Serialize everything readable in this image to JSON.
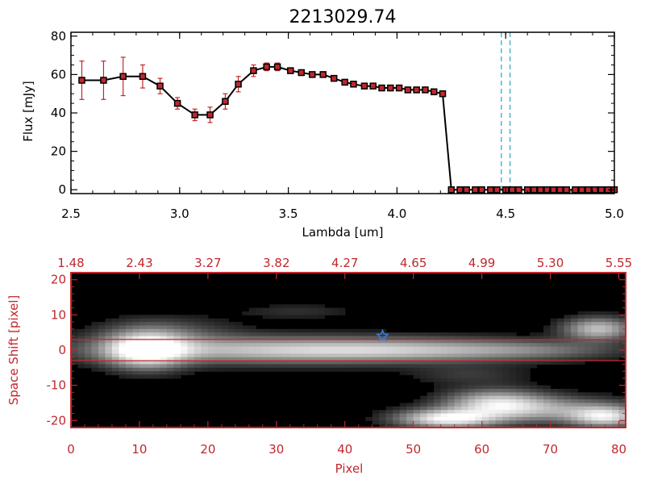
{
  "colors": {
    "axis": "#000000",
    "accent": "#c1272d",
    "line": "#000000",
    "marker": "#c1272d",
    "vline": "#2aa6c8",
    "star": "#3a7bd5"
  },
  "chart_data": [
    {
      "type": "line",
      "title": "2213029.74",
      "xlabel": "Lambda [um]",
      "ylabel": "Flux [mJy]",
      "xlim": [
        2.5,
        5.0
      ],
      "ylim": [
        -2,
        82
      ],
      "xticks": [
        "2.5",
        "3.0",
        "3.5",
        "4.0",
        "4.5",
        "5.0"
      ],
      "xtick_values": [
        2.5,
        3.0,
        3.5,
        4.0,
        4.5,
        5.0
      ],
      "yticks": [
        "0",
        "20",
        "40",
        "60",
        "80"
      ],
      "ytick_values": [
        0,
        20,
        40,
        60,
        80
      ],
      "series": [
        {
          "x": [
            2.55,
            2.65,
            2.74,
            2.83,
            2.91,
            2.99,
            3.07,
            3.14,
            3.21,
            3.27,
            3.34,
            3.4,
            3.45,
            3.51,
            3.56,
            3.61,
            3.66,
            3.71,
            3.76,
            3.8,
            3.85,
            3.89,
            3.93,
            3.97,
            4.01,
            4.05,
            4.09,
            4.13,
            4.17,
            4.21,
            4.25,
            4.29,
            4.32,
            4.36,
            4.39,
            4.43,
            4.46,
            4.5,
            4.53,
            4.56,
            4.6,
            4.63,
            4.66,
            4.69,
            4.72,
            4.75,
            4.78,
            4.82,
            4.85,
            4.88,
            4.91,
            4.94,
            4.97,
            5.0
          ],
          "y": [
            57,
            57,
            59,
            59,
            54,
            45,
            39,
            39,
            46,
            55,
            62,
            64,
            64,
            62,
            61,
            60,
            60,
            58,
            56,
            55,
            54,
            54,
            53,
            53,
            53,
            52,
            52,
            52,
            51,
            50,
            0,
            0,
            0,
            0,
            0,
            0,
            0,
            0,
            0,
            0,
            0,
            0,
            0,
            0,
            0,
            0,
            0,
            0,
            0,
            0,
            0,
            0,
            0,
            0
          ],
          "yerr": [
            10,
            10,
            10,
            6,
            4,
            3,
            3,
            4,
            4,
            4,
            3,
            2,
            2,
            0,
            0,
            0,
            0,
            0,
            0,
            0,
            0,
            0,
            0,
            0,
            0,
            0,
            0,
            0,
            0,
            0,
            0,
            0,
            0,
            0,
            0,
            0,
            0,
            0,
            0,
            0,
            0,
            0,
            0,
            0,
            0,
            0,
            0,
            0,
            0,
            0,
            0,
            0,
            0,
            0
          ]
        }
      ],
      "vlines": [
        4.48,
        4.52
      ]
    },
    {
      "type": "heatmap",
      "xlabel": "Pixel",
      "ylabel": "Space Shift [pixel]",
      "xlim": [
        0,
        81
      ],
      "ylim": [
        -22,
        22
      ],
      "xticks": [
        "0",
        "10",
        "20",
        "30",
        "40",
        "50",
        "60",
        "70",
        "80"
      ],
      "xtick_values": [
        0,
        10,
        20,
        30,
        40,
        50,
        60,
        70,
        80
      ],
      "yticks": [
        "20",
        "10",
        "0",
        "-10",
        "-20"
      ],
      "ytick_values": [
        20,
        10,
        0,
        -10,
        -20
      ],
      "top_xticks": [
        "1.48",
        "2.43",
        "3.27",
        "3.82",
        "4.27",
        "4.65",
        "4.99",
        "5.30",
        "5.55"
      ],
      "hlines": [
        3,
        -3
      ],
      "star": {
        "x": 45.5,
        "y": 4
      },
      "blobs": [
        {
          "x": 11,
          "y": 0,
          "sx": 4,
          "sy": 3.5,
          "a": 1.0
        },
        {
          "x": 28,
          "y": 0,
          "sx": 18,
          "sy": 2.6,
          "a": 0.62
        },
        {
          "x": 50,
          "y": 0,
          "sx": 14,
          "sy": 2.2,
          "a": 0.45
        },
        {
          "x": 68,
          "y": 0,
          "sx": 9,
          "sy": 1.8,
          "a": 0.22
        },
        {
          "x": 14,
          "y": 5,
          "sx": 7,
          "sy": 3,
          "a": 0.22
        },
        {
          "x": 77,
          "y": 6,
          "sx": 3.5,
          "sy": 2.2,
          "a": 0.7
        },
        {
          "x": 55,
          "y": -19.5,
          "sx": 5,
          "sy": 1.8,
          "a": 0.95
        },
        {
          "x": 62,
          "y": -15,
          "sx": 5,
          "sy": 2.6,
          "a": 0.7
        },
        {
          "x": 70,
          "y": -17,
          "sx": 8,
          "sy": 2.5,
          "a": 0.5
        },
        {
          "x": 78,
          "y": -19,
          "sx": 3.5,
          "sy": 2,
          "a": 0.75
        },
        {
          "x": 33,
          "y": 11,
          "sx": 6,
          "sy": 1.5,
          "a": 0.12
        },
        {
          "x": 58,
          "y": -7,
          "sx": 6,
          "sy": 2,
          "a": 0.15
        }
      ]
    }
  ]
}
